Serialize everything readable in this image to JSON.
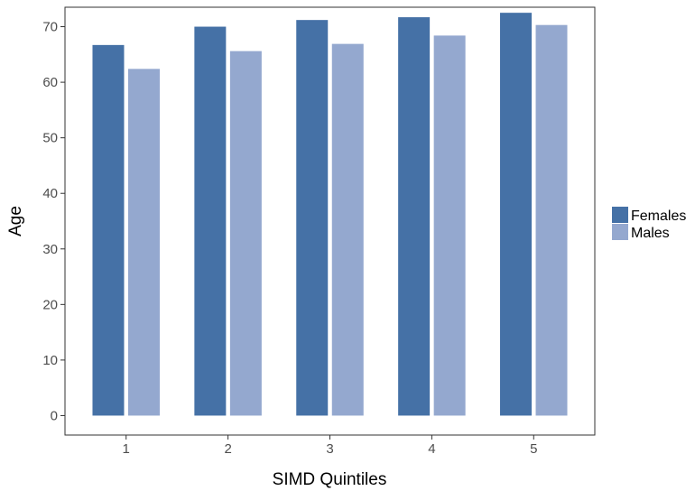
{
  "chart_data": {
    "type": "bar",
    "title": "",
    "xlabel": "SIMD Quintiles",
    "ylabel": "Age",
    "categories": [
      "1",
      "2",
      "3",
      "4",
      "5"
    ],
    "ylim": [
      -3.5,
      73.5
    ],
    "yticks": [
      0,
      10,
      20,
      30,
      40,
      50,
      60,
      70
    ],
    "grid": false,
    "legend_position": "right",
    "series": [
      {
        "name": "Females",
        "color": "#4571a6",
        "values": [
          66.7,
          70.0,
          71.2,
          71.7,
          72.5
        ]
      },
      {
        "name": "Males",
        "color": "#94a8cf",
        "values": [
          62.4,
          65.6,
          66.9,
          68.4,
          70.3
        ]
      }
    ]
  }
}
